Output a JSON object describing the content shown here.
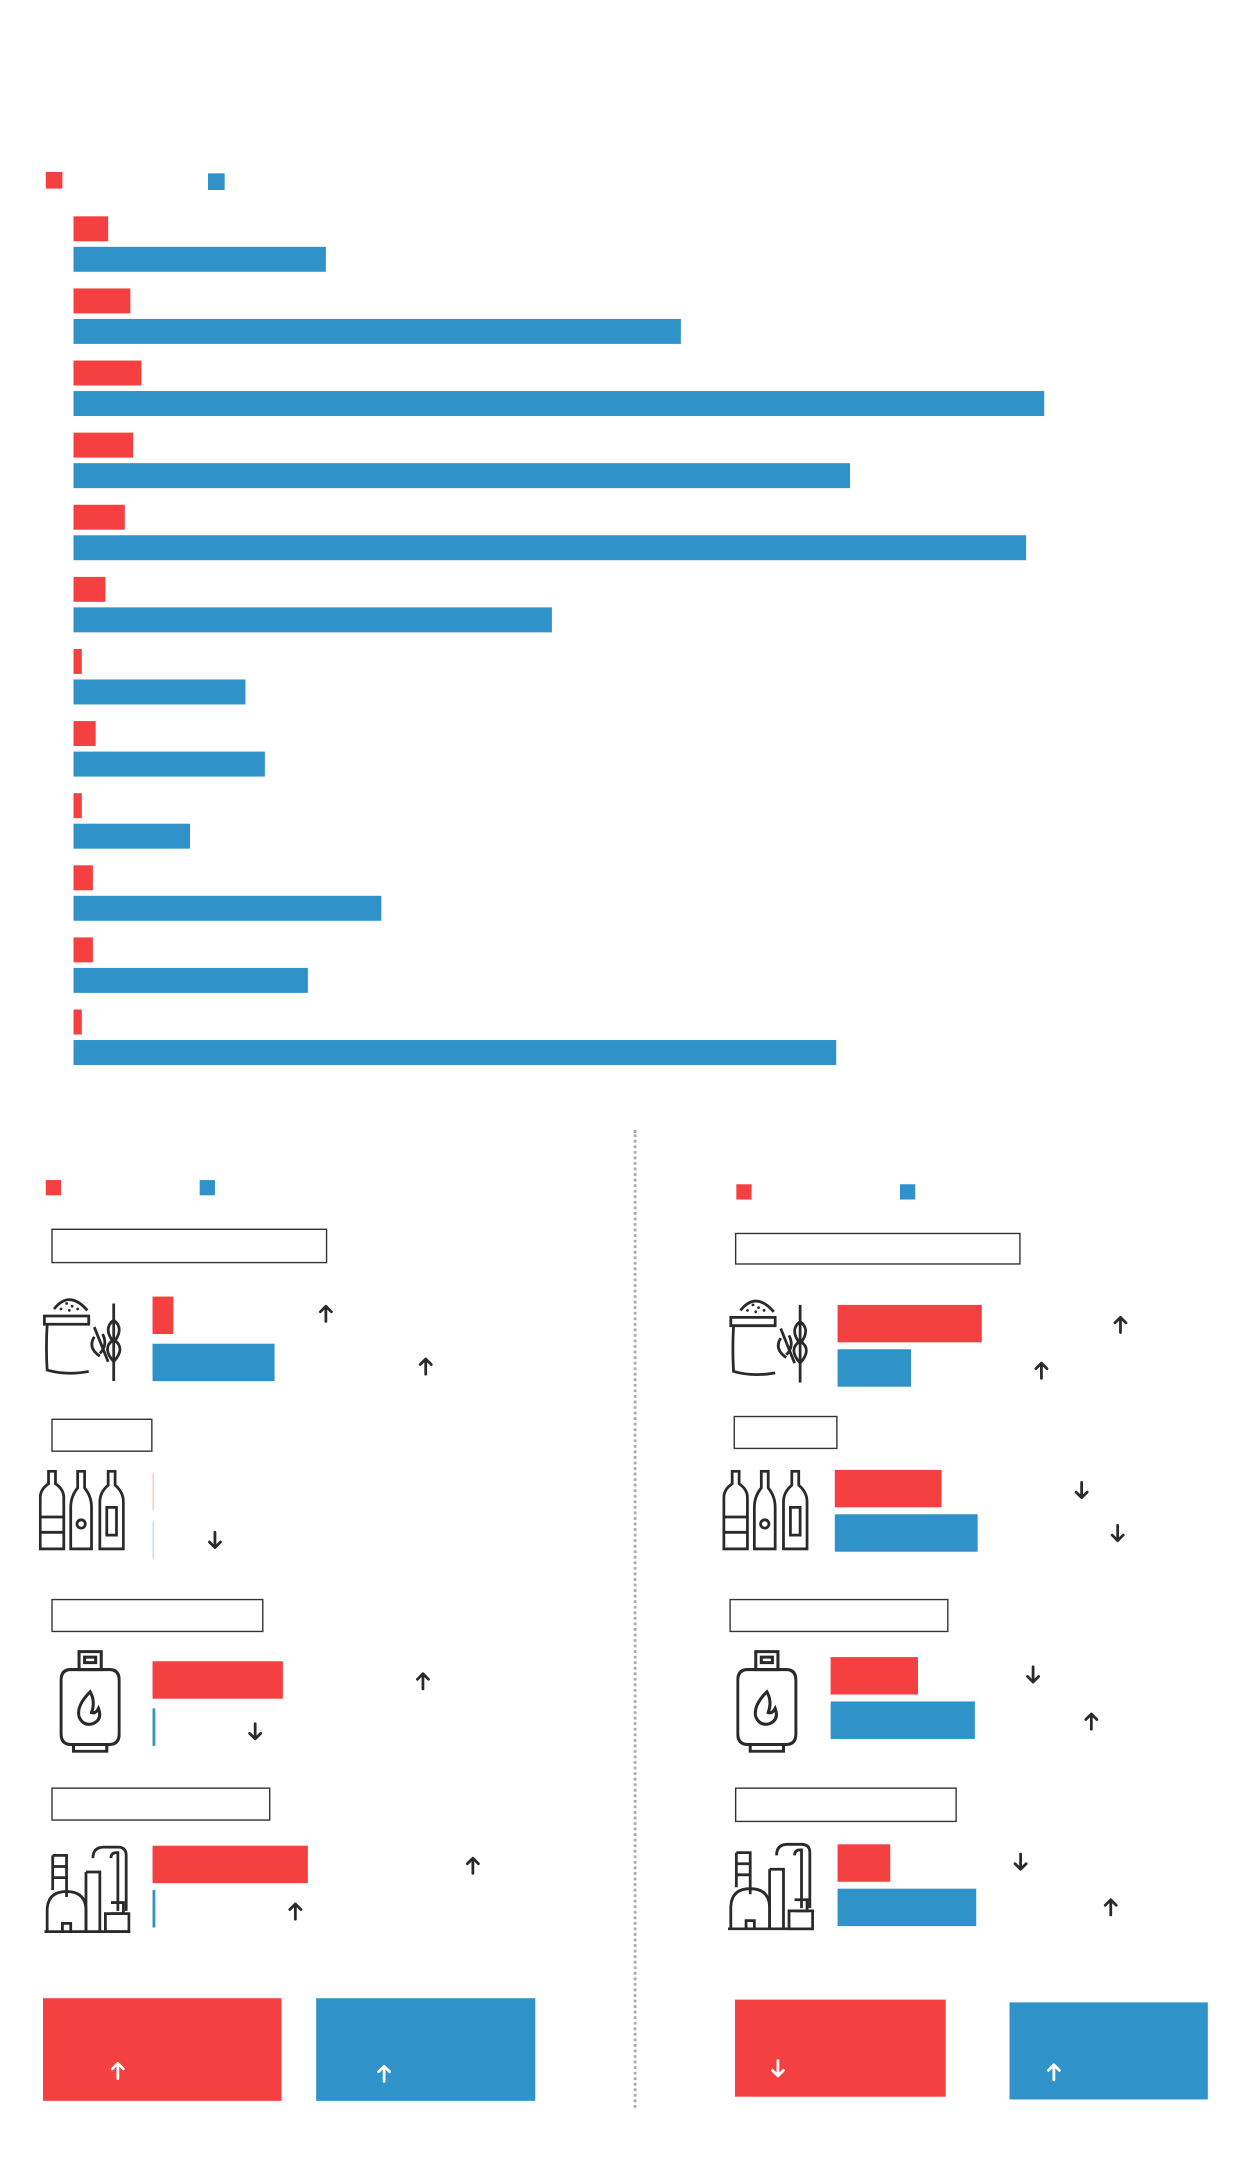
{
  "colors": {
    "red": "#f44040",
    "blue": "#2f92c9",
    "ink": "#2a2a2a"
  },
  "chart_data": {
    "type": "bar",
    "orientation": "horizontal",
    "series": [
      {
        "color": "red",
        "values": [
          25,
          41,
          49,
          43,
          37,
          23,
          6,
          16,
          6,
          14,
          14,
          6
        ]
      },
      {
        "color": "blue",
        "values": [
          182,
          438,
          700,
          560,
          687,
          345,
          124,
          138,
          84,
          222,
          169,
          550
        ]
      }
    ],
    "grid": false,
    "legend": "top-left"
  },
  "panels": [
    {
      "rows": [
        {
          "icon": "flour-wheat-icon",
          "red": 15,
          "blue": 88,
          "red_arrow": "up",
          "blue_arrow": "up"
        },
        {
          "icon": "bottles-icon",
          "red": 1,
          "blue": 1,
          "red_arrow": null,
          "blue_arrow": "down"
        },
        {
          "icon": "gas-cylinder-icon",
          "red": 94,
          "blue": 2,
          "red_arrow": "up",
          "blue_arrow": "down"
        },
        {
          "icon": "factory-icon",
          "red": 112,
          "blue": 2,
          "red_arrow": "up",
          "blue_arrow": "up"
        }
      ],
      "totals": {
        "red_arrow": "up",
        "blue_arrow": "up"
      }
    },
    {
      "rows": [
        {
          "icon": "flour-wheat-icon",
          "red": 104,
          "blue": 53,
          "red_arrow": "up",
          "blue_arrow": "up"
        },
        {
          "icon": "bottles-icon",
          "red": 77,
          "blue": 103,
          "red_arrow": "down",
          "blue_arrow": "down"
        },
        {
          "icon": "gas-cylinder-icon",
          "red": 63,
          "blue": 104,
          "red_arrow": "down",
          "blue_arrow": "up"
        },
        {
          "icon": "factory-icon",
          "red": 38,
          "blue": 100,
          "red_arrow": "down",
          "blue_arrow": "up"
        }
      ],
      "totals": {
        "red_arrow": "down",
        "blue_arrow": "up"
      }
    }
  ]
}
